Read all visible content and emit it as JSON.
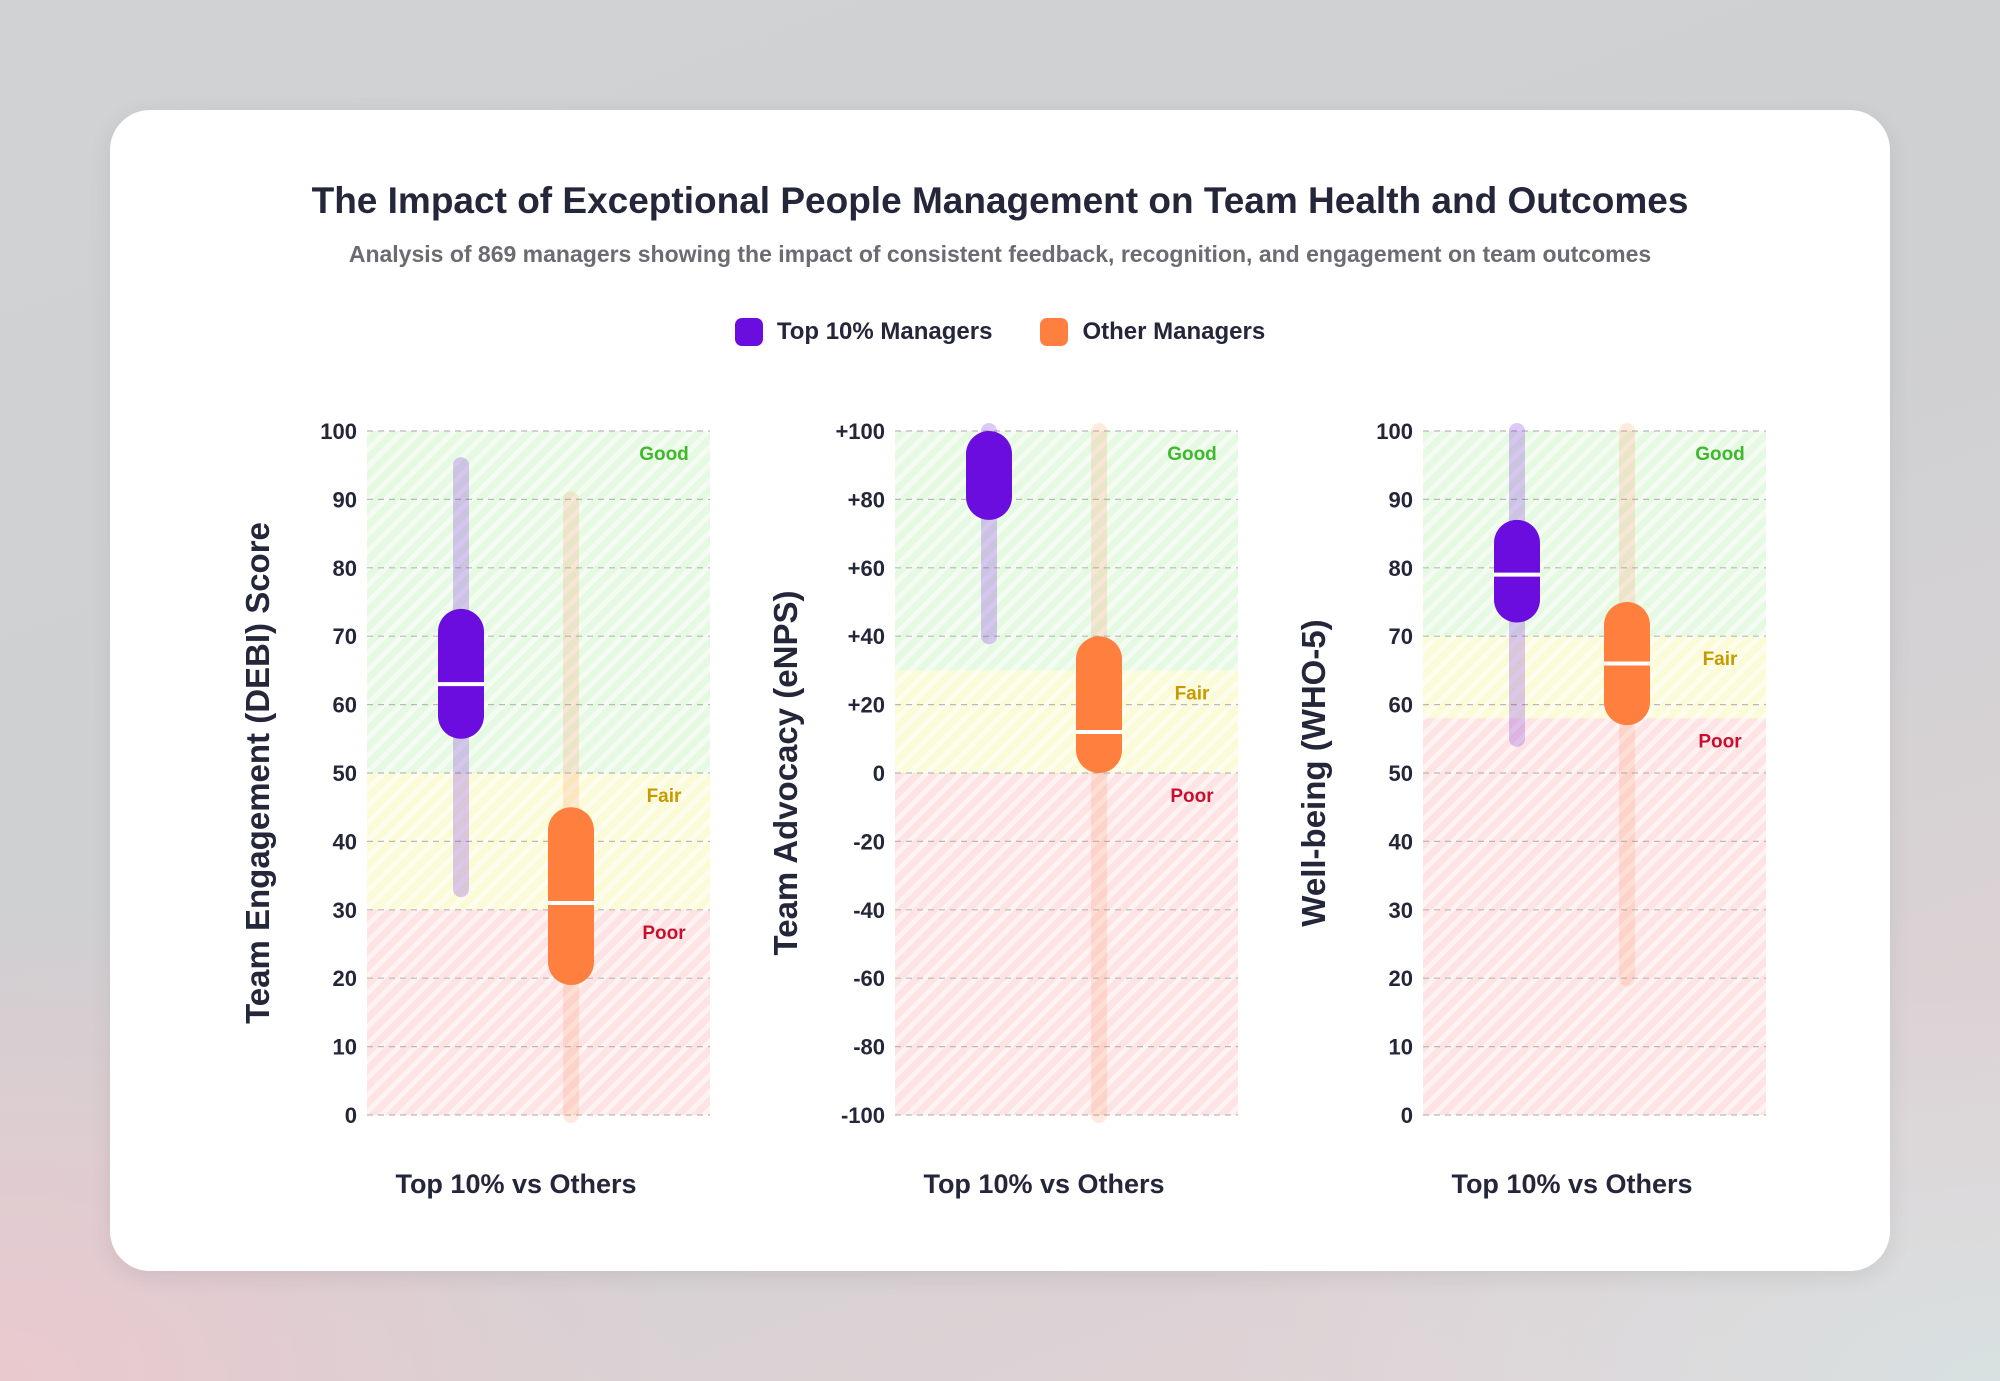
{
  "header": {
    "title": "The Impact of Exceptional People Management on Team Health and Outcomes",
    "subtitle": "Analysis of 869 managers showing the impact of consistent feedback, recognition, and engagement on team outcomes"
  },
  "legend": [
    {
      "label": "Top 10% Managers",
      "color": "#6a0dde"
    },
    {
      "label": "Other Managers",
      "color": "#ff7f3f"
    }
  ],
  "colors": {
    "top": "#6a0dde",
    "other": "#ff7f3f",
    "good_zone": "#e6f9e3",
    "fair_zone": "#fbfbd8",
    "poor_zone": "#fde3e3",
    "good_text": "#3fb82e",
    "fair_text": "#c99a00",
    "poor_text": "#c8102e"
  },
  "chart_data": [
    {
      "type": "range",
      "ylabel": "Team Engagement (DEBI) Score",
      "xlabel": "Top 10% vs Others",
      "ylim": [
        0,
        100
      ],
      "ticks": [
        0,
        10,
        20,
        30,
        40,
        50,
        60,
        70,
        80,
        90,
        100
      ],
      "tick_labels": [
        "0",
        "10",
        "20",
        "30",
        "40",
        "50",
        "60",
        "70",
        "80",
        "90",
        "100"
      ],
      "zones": [
        {
          "label": "Good",
          "from": 50,
          "to": 100,
          "kind": "good"
        },
        {
          "label": "Fair",
          "from": 30,
          "to": 50,
          "kind": "fair"
        },
        {
          "label": "Poor",
          "from": 0,
          "to": 30,
          "kind": "poor"
        }
      ],
      "series": [
        {
          "name": "Top 10% Managers",
          "key": "top",
          "min": 33,
          "max": 95,
          "q1": 55,
          "q3": 74,
          "median": 63
        },
        {
          "name": "Other Managers",
          "key": "other",
          "min": 0,
          "max": 90,
          "q1": 19,
          "q3": 45,
          "median": 31
        }
      ]
    },
    {
      "type": "range",
      "ylabel": "Team Advocacy (eNPS)",
      "xlabel": "Top 10% vs Others",
      "ylim": [
        -100,
        100
      ],
      "ticks": [
        -100,
        -80,
        -60,
        -40,
        -20,
        0,
        20,
        40,
        60,
        80,
        100
      ],
      "tick_labels": [
        "-100",
        "-80",
        "-60",
        "-40",
        "-20",
        "0",
        "+20",
        "+40",
        "+60",
        "+80",
        "+100"
      ],
      "zones": [
        {
          "label": "Good",
          "from": 30,
          "to": 100,
          "kind": "good"
        },
        {
          "label": "Fair",
          "from": 0,
          "to": 30,
          "kind": "fair"
        },
        {
          "label": "Poor",
          "from": -100,
          "to": 0,
          "kind": "poor"
        }
      ],
      "series": [
        {
          "name": "Top 10% Managers",
          "key": "top",
          "min": 40,
          "max": 100,
          "q1": 74,
          "q3": 100,
          "median": null
        },
        {
          "name": "Other Managers",
          "key": "other",
          "min": -100,
          "max": 100,
          "q1": 0,
          "q3": 40,
          "median": 12
        }
      ]
    },
    {
      "type": "range",
      "ylabel": "Well-being (WHO-5)",
      "xlabel": "Top 10% vs Others",
      "ylim": [
        0,
        100
      ],
      "ticks": [
        0,
        10,
        20,
        30,
        40,
        50,
        60,
        70,
        80,
        90,
        100
      ],
      "tick_labels": [
        "0",
        "10",
        "20",
        "30",
        "40",
        "50",
        "60",
        "70",
        "80",
        "90",
        "100"
      ],
      "zones": [
        {
          "label": "Good",
          "from": 70,
          "to": 100,
          "kind": "good"
        },
        {
          "label": "Fair",
          "from": 58,
          "to": 70,
          "kind": "fair"
        },
        {
          "label": "Poor",
          "from": 0,
          "to": 58,
          "kind": "poor"
        }
      ],
      "series": [
        {
          "name": "Top 10% Managers",
          "key": "top",
          "min": 55,
          "max": 100,
          "q1": 72,
          "q3": 87,
          "median": 79
        },
        {
          "name": "Other Managers",
          "key": "other",
          "min": 20,
          "max": 100,
          "q1": 57,
          "q3": 75,
          "median": 66
        }
      ]
    }
  ]
}
